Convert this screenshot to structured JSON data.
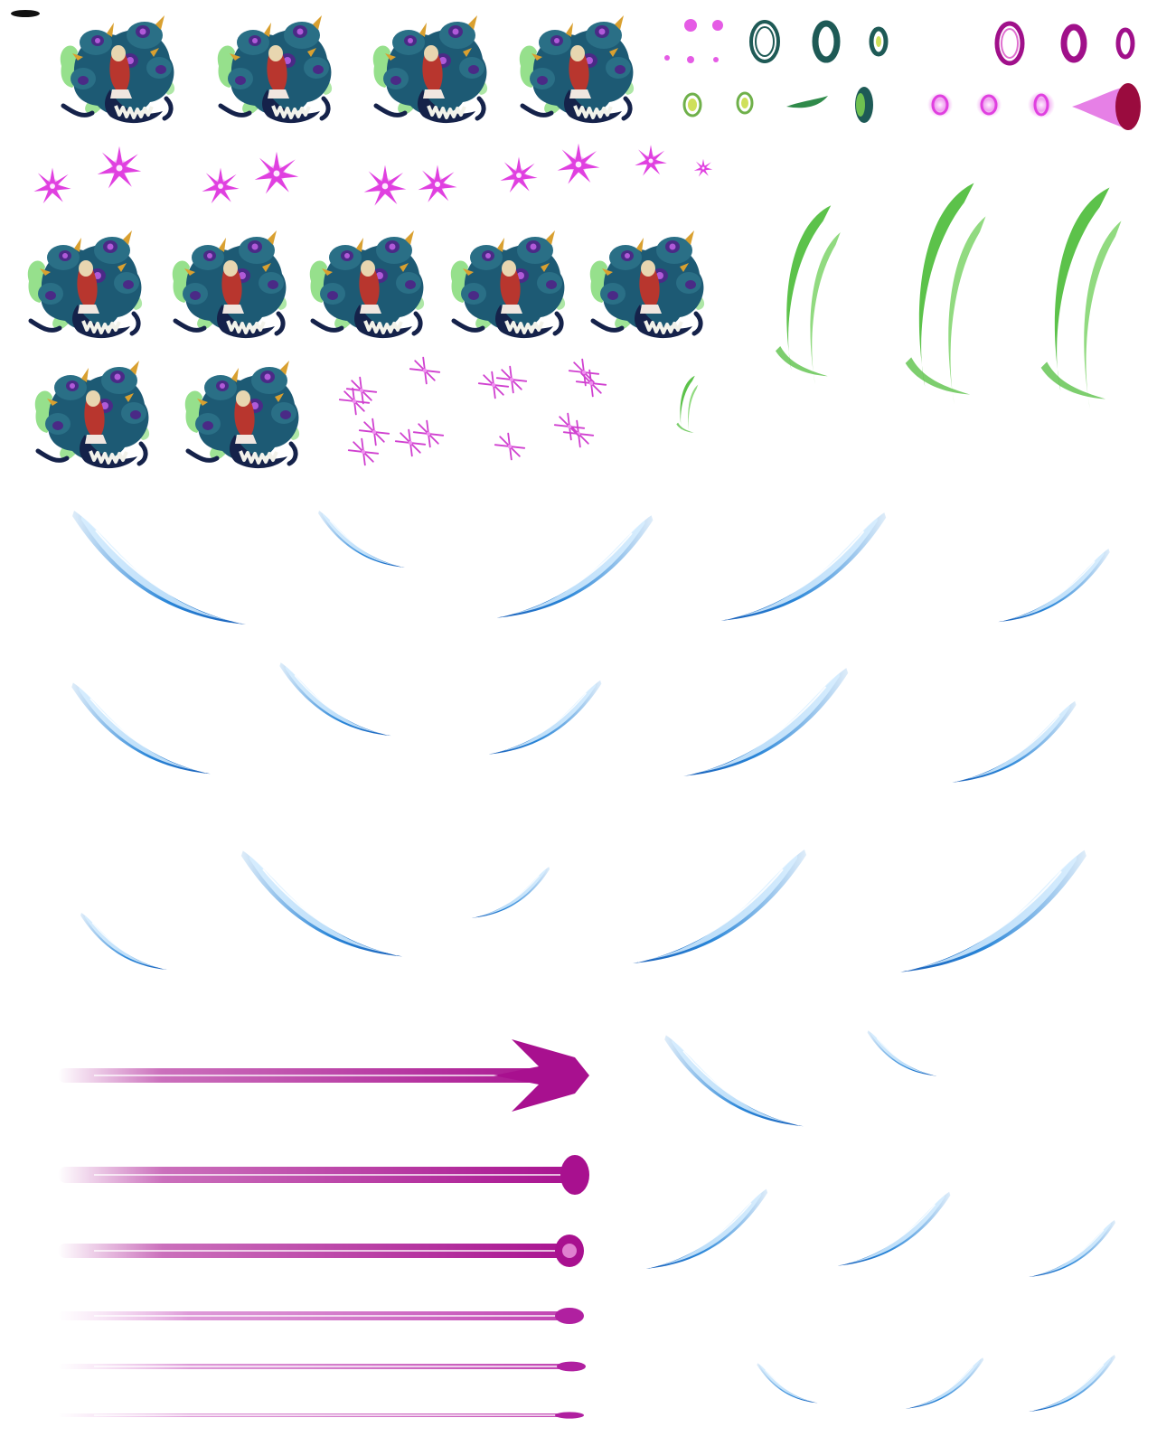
{
  "sheet": {
    "colors": {
      "background": "#ffffff",
      "monster_body": "#1d5a74",
      "monster_dark": "#15224a",
      "monster_purple": "#4a2a86",
      "monster_glow": "#b05ad8",
      "monster_gold": "#d9a030",
      "monster_green_aura": "#5ed04e",
      "character_red": "#b8362e",
      "character_hair": "#e8d6b0",
      "teeth": "#f2f2ea",
      "magenta": "#e040e0",
      "magenta_deep": "#a0108a",
      "teal_ring": "#1e5a56",
      "lime": "#cfe05a",
      "green_arc": "#5cc24a",
      "blue_slash": "#2a86d8",
      "blue_light": "#d8eeff",
      "beam": "#a8108f",
      "beam_light": "#e7a6e0"
    },
    "icons": {
      "monster": "hydra-monster-sprite",
      "burst": "magenta-burst-spark",
      "ring": "energy-ring",
      "arc": "green-wind-arc",
      "slash": "blue-slash-streak",
      "beam": "magenta-beam"
    },
    "groups": {
      "monster_frames": 11,
      "magenta_bursts": 10,
      "sparkles": 14,
      "rings": 15,
      "green_arcs": 4,
      "blue_slashes": 23,
      "beams": 6
    }
  }
}
